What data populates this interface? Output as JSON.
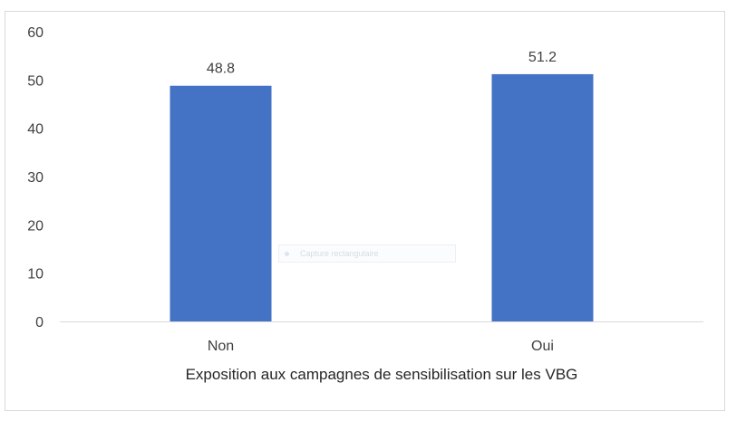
{
  "chart_data": {
    "type": "bar",
    "categories": [
      "Non",
      "Oui"
    ],
    "values": [
      48.8,
      51.2
    ],
    "data_labels": [
      "48.8",
      "51.2"
    ],
    "xlabel": "Exposition aux campagnes de sensibilisation sur les VBG",
    "ylabel": "",
    "ylim": [
      0,
      60
    ],
    "yticks": [
      "0",
      "10",
      "20",
      "30",
      "40",
      "50",
      "60"
    ],
    "grid": false,
    "legend": "none",
    "bar_color": "#4472c4"
  },
  "overlay": {
    "tooltip_text": "Capture rectangulaire"
  }
}
